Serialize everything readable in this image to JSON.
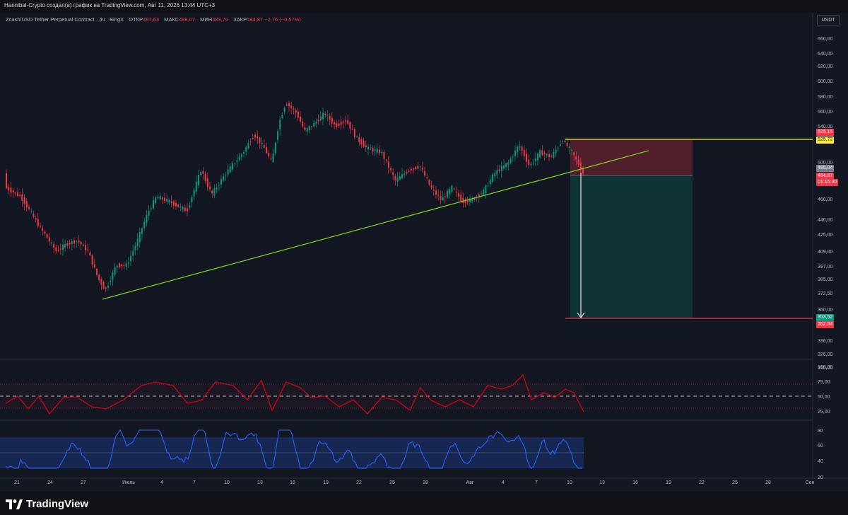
{
  "header": {
    "title": "Hannibal-Crypto создал(а) график на TradingView.com, Авг 11, 2026 13:44 UTC+3"
  },
  "legend": {
    "symbol": "Zcash/USD Tether Perpetual Contract · 4ч · BingX",
    "open_label": "ОТКР",
    "open_value": "487,63",
    "high_label": "МАКС",
    "high_value": "488,07",
    "low_label": "МИН",
    "low_value": "483,70",
    "close_label": "ЗАКР",
    "close_value": "484,87",
    "change": "−2,76 (−0,57%)"
  },
  "currency_button": "USDT",
  "price_axis": {
    "ticks": [
      "660,00",
      "640,00",
      "620,00",
      "600,00",
      "580,00",
      "560,00",
      "540,00",
      "520,00",
      "500,00",
      "480,00",
      "460,00",
      "440,00",
      "425,00",
      "409,00",
      "397,00",
      "385,00",
      "372,50",
      "360,00",
      "348,00",
      "336,00",
      "326,00",
      "315,00"
    ]
  },
  "price_tags": {
    "stop": "526,15",
    "yellow_line": "525,72",
    "entry": "485,04",
    "last": "484,87",
    "countdown": "01:15:30",
    "target": "353,52",
    "target_low": "352,94"
  },
  "oscillator1_axis": [
    "100,00",
    "75,00",
    "50,00",
    "25,00"
  ],
  "oscillator2_axis": [
    "80",
    "60",
    "40",
    "20"
  ],
  "time_axis": [
    "21",
    "24",
    "27",
    "Июль",
    "4",
    "7",
    "10",
    "13",
    "16",
    "19",
    "22",
    "25",
    "28",
    "Авг",
    "4",
    "7",
    "10",
    "13",
    "16",
    "19",
    "22",
    "25",
    "28",
    "Сен"
  ],
  "footer": {
    "brand": "TradingView"
  },
  "colors": {
    "background": "#131722",
    "up": "#089981",
    "down": "#f23645",
    "trendline": "#7ed321",
    "yellow": "#ffeb3b"
  }
}
